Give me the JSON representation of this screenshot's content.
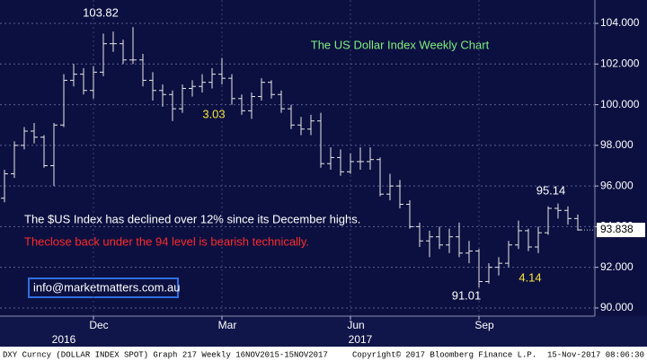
{
  "chart_data": {
    "type": "ohlc",
    "title": "The US Dollar Index Weekly Chart",
    "categories": [
      null,
      null,
      null,
      null,
      null,
      null,
      null,
      null,
      null,
      "Dec",
      null,
      null,
      null,
      null,
      null,
      null,
      null,
      null,
      null,
      null,
      null,
      null,
      "Mar",
      null,
      null,
      null,
      null,
      null,
      null,
      null,
      null,
      null,
      null,
      null,
      null,
      "Jun",
      null,
      null,
      null,
      null,
      null,
      null,
      null,
      null,
      null,
      null,
      null,
      null,
      "Sep",
      null,
      null,
      null,
      null,
      null,
      null,
      null,
      null,
      null,
      null
    ],
    "category_years": [
      null,
      null,
      null,
      null,
      null,
      null,
      "2016",
      null,
      null,
      null,
      null,
      null,
      null,
      null,
      null,
      null,
      null,
      null,
      null,
      null,
      null,
      null,
      null,
      null,
      null,
      null,
      null,
      null,
      null,
      null,
      null,
      null,
      null,
      null,
      null,
      null,
      "2017",
      null,
      null,
      null,
      null,
      null,
      null,
      null,
      null,
      null,
      null,
      null,
      null,
      null,
      null,
      null,
      null,
      null,
      null,
      null,
      null,
      null,
      null
    ],
    "open": [
      95.4,
      96.6,
      98.0,
      98.7,
      98.4,
      97.0,
      99.0,
      101.2,
      101.5,
      100.7,
      101.6,
      103.0,
      103.0,
      102.2,
      102.2,
      101.2,
      100.7,
      100.5,
      99.8,
      100.8,
      100.9,
      101.1,
      101.5,
      101.3,
      100.3,
      99.7,
      100.4,
      101.1,
      100.5,
      99.8,
      99.0,
      98.8,
      99.2,
      97.1,
      97.4,
      96.7,
      97.2,
      97.2,
      97.3,
      95.6,
      96.0,
      95.1,
      94.0,
      93.3,
      93.5,
      93.1,
      93.5,
      92.7,
      92.8,
      91.3,
      92.0,
      92.2,
      93.1,
      93.8,
      93.0,
      93.7,
      94.9,
      94.8,
      94.4
    ],
    "high": [
      96.8,
      98.2,
      98.9,
      99.1,
      98.5,
      99.1,
      101.5,
      102.0,
      101.8,
      101.9,
      103.5,
      103.6,
      103.2,
      103.82,
      102.5,
      101.6,
      101.0,
      100.7,
      101.0,
      101.2,
      101.5,
      101.8,
      102.3,
      101.5,
      100.5,
      100.6,
      101.3,
      101.2,
      100.7,
      100.0,
      99.4,
      99.5,
      99.6,
      97.9,
      97.8,
      97.6,
      97.9,
      97.9,
      97.4,
      96.6,
      96.3,
      95.3,
      94.2,
      93.8,
      94.0,
      93.9,
      94.2,
      93.3,
      92.9,
      92.2,
      92.5,
      93.3,
      94.3,
      93.9,
      94.0,
      95.0,
      95.14,
      95.0,
      94.6
    ],
    "low": [
      95.2,
      96.4,
      97.8,
      98.1,
      96.9,
      96.0,
      98.9,
      100.9,
      100.5,
      100.3,
      101.4,
      102.6,
      102.0,
      102.0,
      100.9,
      100.2,
      99.9,
      99.2,
      99.6,
      100.4,
      100.6,
      100.8,
      101.0,
      100.0,
      99.5,
      99.3,
      100.2,
      100.3,
      99.6,
      98.8,
      98.5,
      98.5,
      96.9,
      96.8,
      96.5,
      96.6,
      96.8,
      96.8,
      95.5,
      95.3,
      94.9,
      93.9,
      93.0,
      92.5,
      92.9,
      92.7,
      92.5,
      92.2,
      91.01,
      91.2,
      91.6,
      92.0,
      92.9,
      92.8,
      92.7,
      93.6,
      94.4,
      94.1,
      93.8
    ],
    "close": [
      96.6,
      98.0,
      98.7,
      98.4,
      97.0,
      99.0,
      101.2,
      101.5,
      100.7,
      101.6,
      103.0,
      103.0,
      102.2,
      102.2,
      101.2,
      100.7,
      100.5,
      99.8,
      100.8,
      100.9,
      101.1,
      101.5,
      101.3,
      100.3,
      99.7,
      100.4,
      101.1,
      100.5,
      99.8,
      99.0,
      98.8,
      99.2,
      97.1,
      97.4,
      96.7,
      97.2,
      97.2,
      97.3,
      95.6,
      96.0,
      95.1,
      94.0,
      93.3,
      93.5,
      93.1,
      93.5,
      92.7,
      92.8,
      91.3,
      92.0,
      92.2,
      93.1,
      93.8,
      93.0,
      93.7,
      94.9,
      94.8,
      94.4,
      93.84
    ],
    "color": "#e8e8e8",
    "ylim": [
      89.6,
      105.15
    ],
    "yticks": [
      {
        "value": 90,
        "label": "90.000"
      },
      {
        "value": 92,
        "label": "92.000"
      },
      {
        "value": 94,
        "label": "94.000"
      },
      {
        "value": 96,
        "label": "96.000"
      },
      {
        "value": 98,
        "label": "98.000"
      },
      {
        "value": 100,
        "label": "100.000"
      },
      {
        "value": 102,
        "label": "102.000"
      },
      {
        "value": 104,
        "label": "104.000"
      }
    ],
    "grid": true,
    "last_price": 93.838,
    "annotations": [
      "103.82",
      "3.03",
      "91.01",
      "4.14",
      "95.14"
    ],
    "notes": [
      "The $US Index has declined over 12% since its December highs.",
      "Theclose back under the 94 level is bearish technically."
    ],
    "contact": "info@marketmatters.com.au",
    "footer": [
      "DXY Curncy (DOLLAR INDEX SPOT) Graph 217  Weekly 16NOV2015-15NOV2017",
      "Copyright© 2017 Bloomberg Finance L.P.",
      "15-Nov-2017 08:06:30"
    ]
  }
}
